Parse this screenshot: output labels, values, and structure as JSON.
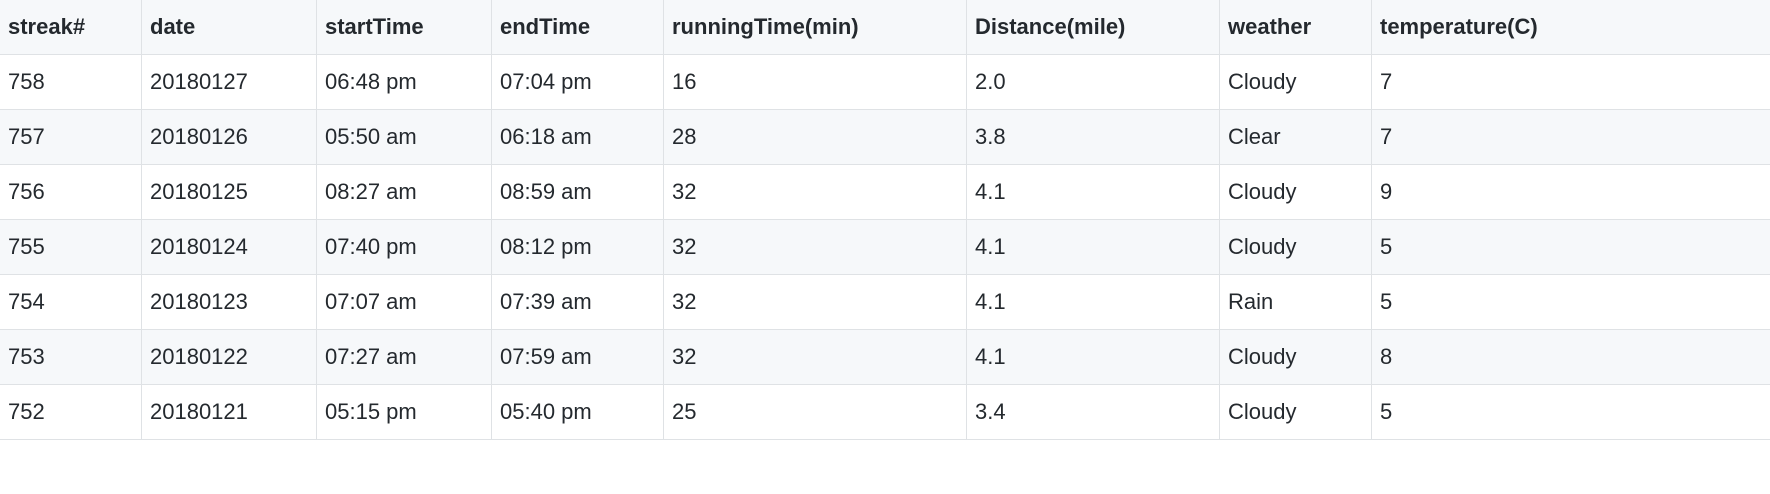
{
  "table": {
    "headers": [
      "streak#",
      "date",
      "startTime",
      "endTime",
      "runningTime(min)",
      "Distance(mile)",
      "weather",
      "temperature(C)"
    ],
    "rows": [
      [
        "758",
        "20180127",
        "06:48 pm",
        "07:04 pm",
        "16",
        "2.0",
        "Cloudy",
        "7"
      ],
      [
        "757",
        "20180126",
        "05:50 am",
        "06:18 am",
        "28",
        "3.8",
        "Clear",
        "7"
      ],
      [
        "756",
        "20180125",
        "08:27 am",
        "08:59 am",
        "32",
        "4.1",
        "Cloudy",
        "9"
      ],
      [
        "755",
        "20180124",
        "07:40 pm",
        "08:12 pm",
        "32",
        "4.1",
        "Cloudy",
        "5"
      ],
      [
        "754",
        "20180123",
        "07:07 am",
        "07:39 am",
        "32",
        "4.1",
        "Rain",
        "5"
      ],
      [
        "753",
        "20180122",
        "07:27 am",
        "07:59 am",
        "32",
        "4.1",
        "Cloudy",
        "8"
      ],
      [
        "752",
        "20180121",
        "05:15 pm",
        "05:40 pm",
        "25",
        "3.4",
        "Cloudy",
        "5"
      ]
    ]
  }
}
